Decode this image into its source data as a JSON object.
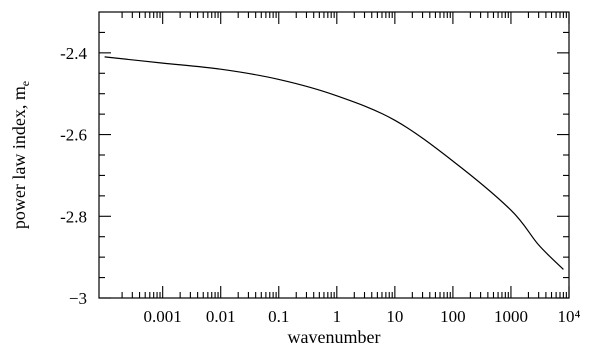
{
  "chart_data": {
    "type": "line",
    "title": "",
    "xlabel": "wavenumber",
    "ylabel_main": "power law index, m",
    "ylabel_subscript": "e",
    "x_scale": "log",
    "xlim": [
      8e-05,
      10000
    ],
    "ylim": [
      -3.0,
      -2.3
    ],
    "grid": false,
    "x_ticks": [
      {
        "value": 0.001,
        "label": "0.001"
      },
      {
        "value": 0.01,
        "label": "0.01"
      },
      {
        "value": 0.1,
        "label": "0.1"
      },
      {
        "value": 1,
        "label": "1"
      },
      {
        "value": 10,
        "label": "10"
      },
      {
        "value": 100,
        "label": "100"
      },
      {
        "value": 1000,
        "label": "1000"
      },
      {
        "value": 10000,
        "label": "10⁴"
      }
    ],
    "y_ticks": [
      {
        "value": -2.4,
        "label": "-2.4"
      },
      {
        "value": -2.6,
        "label": "-2.6"
      },
      {
        "value": -2.8,
        "label": "-2.8"
      },
      {
        "value": -3.0,
        "label": "−3"
      }
    ],
    "series": [
      {
        "x": [
          0.0001,
          0.001,
          0.01,
          0.1,
          1,
          10,
          100,
          1000,
          3000,
          8000
        ],
        "y": [
          -2.41,
          -2.425,
          -2.44,
          -2.465,
          -2.505,
          -2.565,
          -2.665,
          -2.785,
          -2.87,
          -2.93
        ]
      }
    ]
  }
}
